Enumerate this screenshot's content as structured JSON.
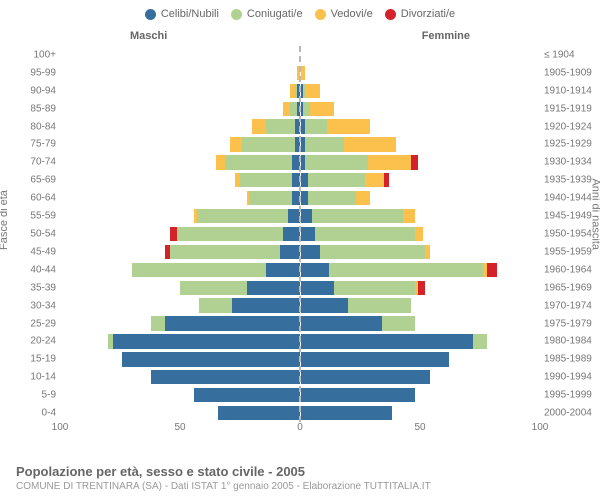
{
  "type": "population-pyramid",
  "legend": [
    {
      "label": "Celibi/Nubili",
      "color": "#366f9e"
    },
    {
      "label": "Coniugati/e",
      "color": "#b1d192"
    },
    {
      "label": "Vedovi/e",
      "color": "#fcc04d"
    },
    {
      "label": "Divorziati/e",
      "color": "#d4222b"
    }
  ],
  "gender_labels": {
    "male": "Maschi",
    "female": "Femmine"
  },
  "y_title_left": "Fasce di età",
  "y_title_right": "Anni di nascita",
  "x_max": 100,
  "x_ticks": [
    100,
    50,
    0,
    50,
    100
  ],
  "bar_gap_pct": 20,
  "axis_dash_color": "#b8b8b8",
  "background_color": "#ffffff",
  "label_fontsize": 10,
  "label_color": "#777",
  "rows": [
    {
      "age": "100+",
      "birth": "≤ 1904",
      "m": [
        0,
        0,
        0,
        0
      ],
      "f": [
        0,
        0,
        0,
        0
      ]
    },
    {
      "age": "95-99",
      "birth": "1905-1909",
      "m": [
        0,
        0,
        1,
        0
      ],
      "f": [
        0,
        0,
        2,
        0
      ]
    },
    {
      "age": "90-94",
      "birth": "1910-1914",
      "m": [
        1,
        1,
        2,
        0
      ],
      "f": [
        1,
        1,
        6,
        0
      ]
    },
    {
      "age": "85-89",
      "birth": "1915-1919",
      "m": [
        1,
        3,
        3,
        0
      ],
      "f": [
        1,
        3,
        10,
        0
      ]
    },
    {
      "age": "80-84",
      "birth": "1920-1924",
      "m": [
        2,
        12,
        6,
        0
      ],
      "f": [
        2,
        9,
        18,
        0
      ]
    },
    {
      "age": "75-79",
      "birth": "1925-1929",
      "m": [
        2,
        22,
        5,
        0
      ],
      "f": [
        2,
        16,
        22,
        0
      ]
    },
    {
      "age": "70-74",
      "birth": "1930-1934",
      "m": [
        3,
        28,
        4,
        0
      ],
      "f": [
        2,
        26,
        18,
        3
      ]
    },
    {
      "age": "65-69",
      "birth": "1935-1939",
      "m": [
        3,
        22,
        2,
        0
      ],
      "f": [
        3,
        24,
        8,
        2
      ]
    },
    {
      "age": "60-64",
      "birth": "1940-1944",
      "m": [
        3,
        18,
        1,
        0
      ],
      "f": [
        3,
        20,
        6,
        0
      ]
    },
    {
      "age": "55-59",
      "birth": "1945-1949",
      "m": [
        5,
        38,
        1,
        0
      ],
      "f": [
        5,
        38,
        5,
        0
      ]
    },
    {
      "age": "50-54",
      "birth": "1950-1954",
      "m": [
        7,
        44,
        0,
        3
      ],
      "f": [
        6,
        42,
        3,
        0
      ]
    },
    {
      "age": "45-49",
      "birth": "1955-1959",
      "m": [
        8,
        46,
        0,
        2
      ],
      "f": [
        8,
        44,
        2,
        0
      ]
    },
    {
      "age": "40-44",
      "birth": "1960-1964",
      "m": [
        14,
        56,
        0,
        0
      ],
      "f": [
        12,
        64,
        2,
        4
      ]
    },
    {
      "age": "35-39",
      "birth": "1965-1969",
      "m": [
        22,
        28,
        0,
        0
      ],
      "f": [
        14,
        34,
        1,
        3
      ]
    },
    {
      "age": "30-34",
      "birth": "1970-1974",
      "m": [
        28,
        14,
        0,
        0
      ],
      "f": [
        20,
        26,
        0,
        0
      ]
    },
    {
      "age": "25-29",
      "birth": "1975-1979",
      "m": [
        56,
        6,
        0,
        0
      ],
      "f": [
        34,
        14,
        0,
        0
      ]
    },
    {
      "age": "20-24",
      "birth": "1980-1984",
      "m": [
        78,
        2,
        0,
        0
      ],
      "f": [
        72,
        6,
        0,
        0
      ]
    },
    {
      "age": "15-19",
      "birth": "1985-1989",
      "m": [
        74,
        0,
        0,
        0
      ],
      "f": [
        62,
        0,
        0,
        0
      ]
    },
    {
      "age": "10-14",
      "birth": "1990-1994",
      "m": [
        62,
        0,
        0,
        0
      ],
      "f": [
        54,
        0,
        0,
        0
      ]
    },
    {
      "age": "5-9",
      "birth": "1995-1999",
      "m": [
        44,
        0,
        0,
        0
      ],
      "f": [
        48,
        0,
        0,
        0
      ]
    },
    {
      "age": "0-4",
      "birth": "2000-2004",
      "m": [
        34,
        0,
        0,
        0
      ],
      "f": [
        38,
        0,
        0,
        0
      ]
    }
  ],
  "footer_title": "Popolazione per età, sesso e stato civile - 2005",
  "footer_sub": "COMUNE DI TRENTINARA (SA) - Dati ISTAT 1° gennaio 2005 - Elaborazione TUTTITALIA.IT"
}
